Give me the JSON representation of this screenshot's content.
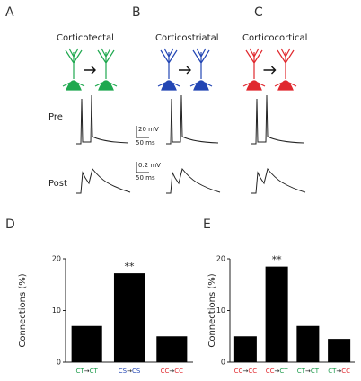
{
  "panel_labels": [
    "A",
    "B",
    "C",
    "D",
    "E"
  ],
  "cells": [
    {
      "title": "Corticotectal",
      "color": "#1fa84f"
    },
    {
      "title": "Corticostriatal",
      "color": "#2346b4"
    },
    {
      "title": "Corticocortical",
      "color": "#e0282e"
    }
  ],
  "traces": {
    "pre": "Pre",
    "post": "Post",
    "pre_scale": [
      "20 mV",
      "50 ms"
    ],
    "post_scale": [
      "0.2 mV",
      "50 ms"
    ]
  },
  "label_colors": {
    "CT": "#1a9a4a",
    "CS": "#2346b4",
    "CC": "#e0282e"
  },
  "chart_data": [
    {
      "type": "bar",
      "ylabel": "Connections (%)",
      "categories": [
        "CT→CT",
        "CS→CS",
        "CC→CC"
      ],
      "values": [
        7,
        17.2,
        5
      ],
      "color": "#000000",
      "ylim": [
        0,
        20
      ],
      "yticks": [
        0,
        10,
        20
      ],
      "annotations": [
        {
          "category": 1,
          "text": "**"
        }
      ]
    },
    {
      "type": "bar",
      "ylabel": "Connections (%)",
      "categories": [
        "CC→CC",
        "CC→CT",
        "CT→CT",
        "CT→CC"
      ],
      "values": [
        5,
        18.5,
        7,
        4.5
      ],
      "color": "#000000",
      "ylim": [
        0,
        20
      ],
      "yticks": [
        0,
        10,
        20
      ],
      "annotations": [
        {
          "category": 1,
          "text": "**"
        }
      ]
    }
  ]
}
